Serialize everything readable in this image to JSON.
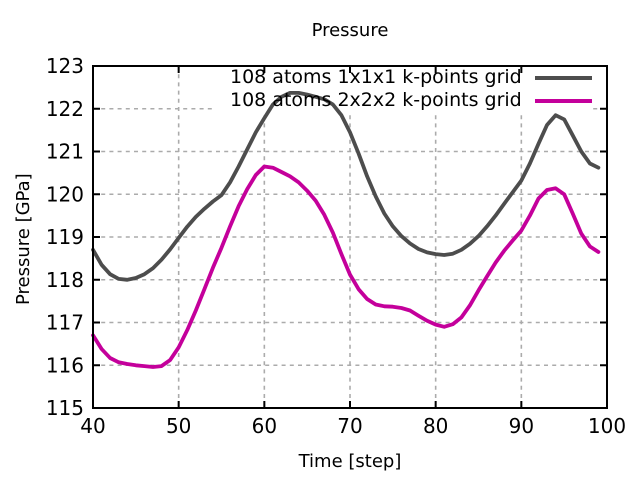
{
  "chart_data": {
    "type": "line",
    "title": "Pressure",
    "xlabel": "Time [step]",
    "ylabel": "Pressure [GPa]",
    "xlim": [
      40,
      100
    ],
    "ylim": [
      115,
      123
    ],
    "x_ticks": [
      40,
      50,
      60,
      70,
      80,
      90,
      100
    ],
    "y_ticks": [
      115,
      116,
      117,
      118,
      119,
      120,
      121,
      122,
      123
    ],
    "grid": true,
    "grid_style": "dashed",
    "legend_position": "top-right-inside",
    "series": [
      {
        "name": "108 atoms 1x1x1 k-points grid",
        "color": "#4d4d4d",
        "x": [
          40,
          41,
          42,
          43,
          44,
          45,
          46,
          47,
          48,
          49,
          50,
          51,
          52,
          53,
          54,
          55,
          56,
          57,
          58,
          59,
          60,
          61,
          62,
          63,
          64,
          65,
          66,
          67,
          68,
          69,
          70,
          71,
          72,
          73,
          74,
          75,
          76,
          77,
          78,
          79,
          80,
          81,
          82,
          83,
          84,
          85,
          86,
          87,
          88,
          89,
          90,
          91,
          92,
          93,
          94,
          95,
          96,
          97,
          98,
          99
        ],
        "y": [
          118.7,
          118.35,
          118.13,
          118.02,
          118.0,
          118.04,
          118.13,
          118.27,
          118.47,
          118.71,
          118.98,
          119.24,
          119.47,
          119.66,
          119.83,
          119.98,
          120.28,
          120.65,
          121.05,
          121.45,
          121.78,
          122.1,
          122.28,
          122.37,
          122.37,
          122.33,
          122.28,
          122.22,
          122.1,
          121.85,
          121.45,
          120.95,
          120.42,
          119.95,
          119.55,
          119.25,
          119.02,
          118.85,
          118.72,
          118.64,
          118.6,
          118.58,
          118.61,
          118.7,
          118.84,
          119.02,
          119.25,
          119.5,
          119.78,
          120.05,
          120.32,
          120.72,
          121.18,
          121.62,
          121.85,
          121.75,
          121.38,
          121.0,
          120.72,
          120.62
        ]
      },
      {
        "name": "108 atoms 2x2x2 k-points grid",
        "color": "#c4009b",
        "x": [
          40,
          41,
          42,
          43,
          44,
          45,
          46,
          47,
          48,
          49,
          50,
          51,
          52,
          53,
          54,
          55,
          56,
          57,
          58,
          59,
          60,
          61,
          62,
          63,
          64,
          65,
          66,
          67,
          68,
          69,
          70,
          71,
          72,
          73,
          74,
          75,
          76,
          77,
          78,
          79,
          80,
          81,
          82,
          83,
          84,
          85,
          86,
          87,
          88,
          89,
          90,
          91,
          92,
          93,
          94,
          95,
          96,
          97,
          98,
          99
        ],
        "y": [
          116.7,
          116.38,
          116.17,
          116.07,
          116.03,
          116.0,
          115.98,
          115.96,
          115.98,
          116.12,
          116.42,
          116.82,
          117.28,
          117.78,
          118.28,
          118.75,
          119.25,
          119.72,
          120.12,
          120.45,
          120.65,
          120.62,
          120.52,
          120.42,
          120.28,
          120.08,
          119.85,
          119.52,
          119.1,
          118.6,
          118.12,
          117.78,
          117.55,
          117.42,
          117.38,
          117.37,
          117.34,
          117.28,
          117.16,
          117.04,
          116.95,
          116.9,
          116.96,
          117.12,
          117.4,
          117.75,
          118.08,
          118.4,
          118.68,
          118.92,
          119.15,
          119.5,
          119.9,
          120.1,
          120.14,
          120.0,
          119.55,
          119.08,
          118.78,
          118.65
        ]
      }
    ],
    "colors": {
      "background": "#ffffff",
      "axis": "#000000",
      "grid": "#ababab",
      "tick_text": "#000000"
    }
  }
}
